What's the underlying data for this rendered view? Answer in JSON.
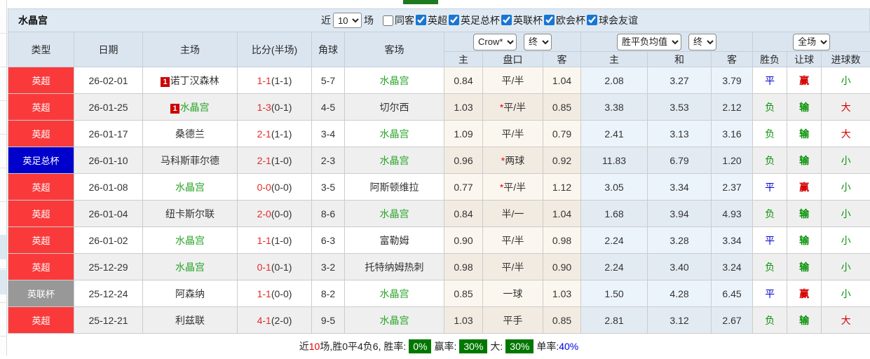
{
  "title": "水晶宫",
  "filters": {
    "recent_label": "近",
    "recent_value": "10",
    "unit_label": "场",
    "same_away": {
      "label": "同客",
      "checked": false
    },
    "leagues": [
      {
        "label": "英超",
        "checked": true
      },
      {
        "label": "英足总杯",
        "checked": true
      },
      {
        "label": "英联杯",
        "checked": true
      },
      {
        "label": "欧会杯",
        "checked": true
      },
      {
        "label": "球会友谊",
        "checked": true
      }
    ]
  },
  "table": {
    "controls": {
      "odds_company": "Crow*",
      "odds_state": "终",
      "avg_type": "胜平负均值",
      "avg_state": "终",
      "scope": "全场"
    },
    "headers": {
      "type": "类型",
      "date": "日期",
      "home": "主场",
      "score": "比分(半场)",
      "corner": "角球",
      "away": "客场",
      "odds_home": "主",
      "odds_handicap": "盘口",
      "odds_away": "客",
      "avg_home": "主",
      "avg_draw": "和",
      "avg_away": "客",
      "wdl": "胜负",
      "handicap_result": "让球",
      "goals": "进球数"
    },
    "rows": [
      {
        "type": {
          "label": "英超",
          "color": "red"
        },
        "date": "26-02-01",
        "home": {
          "name": "诺丁汉森林",
          "rank": "1",
          "highlight": false
        },
        "score": {
          "main": "1-1",
          "half": "(1-1)"
        },
        "corner": "5-7",
        "away": {
          "name": "水晶宫",
          "highlight": true
        },
        "odds": {
          "home": "0.84",
          "star": false,
          "handicap": "平/半",
          "away": "1.04"
        },
        "avg": {
          "home": "2.08",
          "draw": "3.27",
          "away": "3.79"
        },
        "result": [
          [
            "平",
            "blue"
          ],
          [
            "赢",
            "red"
          ],
          [
            "小",
            "green"
          ]
        ]
      },
      {
        "type": {
          "label": "英超",
          "color": "red"
        },
        "date": "26-01-25",
        "home": {
          "name": "水晶宫",
          "rank": "1",
          "highlight": true
        },
        "score": {
          "main": "1-3",
          "half": "(0-1)"
        },
        "corner": "4-5",
        "away": {
          "name": "切尔西",
          "highlight": false
        },
        "odds": {
          "home": "1.03",
          "star": true,
          "handicap": "平/半",
          "away": "0.85"
        },
        "avg": {
          "home": "3.38",
          "draw": "3.53",
          "away": "2.12"
        },
        "result": [
          [
            "负",
            "green"
          ],
          [
            "输",
            "green"
          ],
          [
            "大",
            "red"
          ]
        ]
      },
      {
        "type": {
          "label": "英超",
          "color": "red"
        },
        "date": "26-01-17",
        "home": {
          "name": "桑德兰",
          "rank": null,
          "highlight": false
        },
        "score": {
          "main": "2-1",
          "half": "(1-1)"
        },
        "corner": "3-4",
        "away": {
          "name": "水晶宫",
          "highlight": true
        },
        "odds": {
          "home": "1.09",
          "star": false,
          "handicap": "平/半",
          "away": "0.79"
        },
        "avg": {
          "home": "2.41",
          "draw": "3.13",
          "away": "3.16"
        },
        "result": [
          [
            "负",
            "green"
          ],
          [
            "输",
            "green"
          ],
          [
            "大",
            "red"
          ]
        ]
      },
      {
        "type": {
          "label": "英足总杯",
          "color": "blue"
        },
        "date": "26-01-10",
        "home": {
          "name": "马科斯菲尔德",
          "rank": null,
          "highlight": false
        },
        "score": {
          "main": "2-1",
          "half": "(1-0)"
        },
        "corner": "2-3",
        "away": {
          "name": "水晶宫",
          "highlight": true
        },
        "odds": {
          "home": "0.96",
          "star": true,
          "handicap": "两球",
          "away": "0.92"
        },
        "avg": {
          "home": "11.83",
          "draw": "6.79",
          "away": "1.20"
        },
        "result": [
          [
            "负",
            "green"
          ],
          [
            "输",
            "green"
          ],
          [
            "小",
            "green"
          ]
        ]
      },
      {
        "type": {
          "label": "英超",
          "color": "red"
        },
        "date": "26-01-08",
        "home": {
          "name": "水晶宫",
          "rank": null,
          "highlight": true
        },
        "score": {
          "main": "0-0",
          "half": "(0-0)"
        },
        "corner": "3-5",
        "away": {
          "name": "阿斯顿维拉",
          "highlight": false
        },
        "odds": {
          "home": "0.77",
          "star": true,
          "handicap": "平/半",
          "away": "1.12"
        },
        "avg": {
          "home": "3.05",
          "draw": "3.34",
          "away": "2.37"
        },
        "result": [
          [
            "平",
            "blue"
          ],
          [
            "赢",
            "red"
          ],
          [
            "小",
            "green"
          ]
        ]
      },
      {
        "type": {
          "label": "英超",
          "color": "red"
        },
        "date": "26-01-04",
        "home": {
          "name": "纽卡斯尔联",
          "rank": null,
          "highlight": false
        },
        "score": {
          "main": "2-0",
          "half": "(0-0)"
        },
        "corner": "8-6",
        "away": {
          "name": "水晶宫",
          "highlight": true
        },
        "odds": {
          "home": "0.84",
          "star": false,
          "handicap": "半/一",
          "away": "1.04"
        },
        "avg": {
          "home": "1.68",
          "draw": "3.94",
          "away": "4.93"
        },
        "result": [
          [
            "负",
            "green"
          ],
          [
            "输",
            "green"
          ],
          [
            "小",
            "green"
          ]
        ]
      },
      {
        "type": {
          "label": "英超",
          "color": "red"
        },
        "date": "26-01-02",
        "home": {
          "name": "水晶宫",
          "rank": null,
          "highlight": true
        },
        "score": {
          "main": "1-1",
          "half": "(1-0)"
        },
        "corner": "6-3",
        "away": {
          "name": "富勒姆",
          "highlight": false
        },
        "odds": {
          "home": "0.90",
          "star": false,
          "handicap": "平/半",
          "away": "0.98"
        },
        "avg": {
          "home": "2.24",
          "draw": "3.28",
          "away": "3.34"
        },
        "result": [
          [
            "平",
            "blue"
          ],
          [
            "输",
            "green"
          ],
          [
            "小",
            "green"
          ]
        ]
      },
      {
        "type": {
          "label": "英超",
          "color": "red"
        },
        "date": "25-12-29",
        "home": {
          "name": "水晶宫",
          "rank": null,
          "highlight": true
        },
        "score": {
          "main": "0-1",
          "half": "(0-1)"
        },
        "corner": "3-2",
        "away": {
          "name": "托特纳姆热刺",
          "highlight": false
        },
        "odds": {
          "home": "0.98",
          "star": false,
          "handicap": "平/半",
          "away": "0.90"
        },
        "avg": {
          "home": "2.24",
          "draw": "3.40",
          "away": "3.24"
        },
        "result": [
          [
            "负",
            "green"
          ],
          [
            "输",
            "green"
          ],
          [
            "小",
            "green"
          ]
        ]
      },
      {
        "type": {
          "label": "英联杯",
          "color": "gray"
        },
        "date": "25-12-24",
        "home": {
          "name": "阿森纳",
          "rank": null,
          "highlight": false
        },
        "score": {
          "main": "1-1",
          "half": "(0-0)"
        },
        "corner": "8-2",
        "away": {
          "name": "水晶宫",
          "highlight": true
        },
        "odds": {
          "home": "0.85",
          "star": false,
          "handicap": "一球",
          "away": "1.03"
        },
        "avg": {
          "home": "1.50",
          "draw": "4.28",
          "away": "6.45"
        },
        "result": [
          [
            "平",
            "blue"
          ],
          [
            "赢",
            "red"
          ],
          [
            "小",
            "green"
          ]
        ]
      },
      {
        "type": {
          "label": "英超",
          "color": "red"
        },
        "date": "25-12-21",
        "home": {
          "name": "利兹联",
          "rank": null,
          "highlight": false
        },
        "score": {
          "main": "4-1",
          "half": "(2-0)"
        },
        "corner": "9-5",
        "away": {
          "name": "水晶宫",
          "highlight": true
        },
        "odds": {
          "home": "1.03",
          "star": false,
          "handicap": "平手",
          "away": "0.85"
        },
        "avg": {
          "home": "2.81",
          "draw": "3.12",
          "away": "2.67"
        },
        "result": [
          [
            "负",
            "green"
          ],
          [
            "输",
            "green"
          ],
          [
            "大",
            "red"
          ]
        ]
      }
    ]
  },
  "footer": {
    "prefix": "近",
    "count": "10",
    "summary": "场,胜0平4负6, 胜率:",
    "win_rate": "0%",
    "handicap_label": "赢率:",
    "handicap_rate": "30%",
    "big_label": "大:",
    "big_rate": "30%",
    "single_label": "单率:",
    "single_rate": "40%"
  },
  "colors": {
    "badge_red": "#fa3a3a",
    "badge_blue": "#0000cc",
    "badge_gray": "#989898",
    "team_highlight_green": "#28a428",
    "score_red": "#e32b2b",
    "result_blue": "#0000cc",
    "result_green": "#089308",
    "result_red": "#d40000",
    "rate_badge_green": "#007700",
    "rate_blue": "#0000ee",
    "header_bg": "#dbe5f0",
    "title_bg": "#dfe9f3"
  }
}
